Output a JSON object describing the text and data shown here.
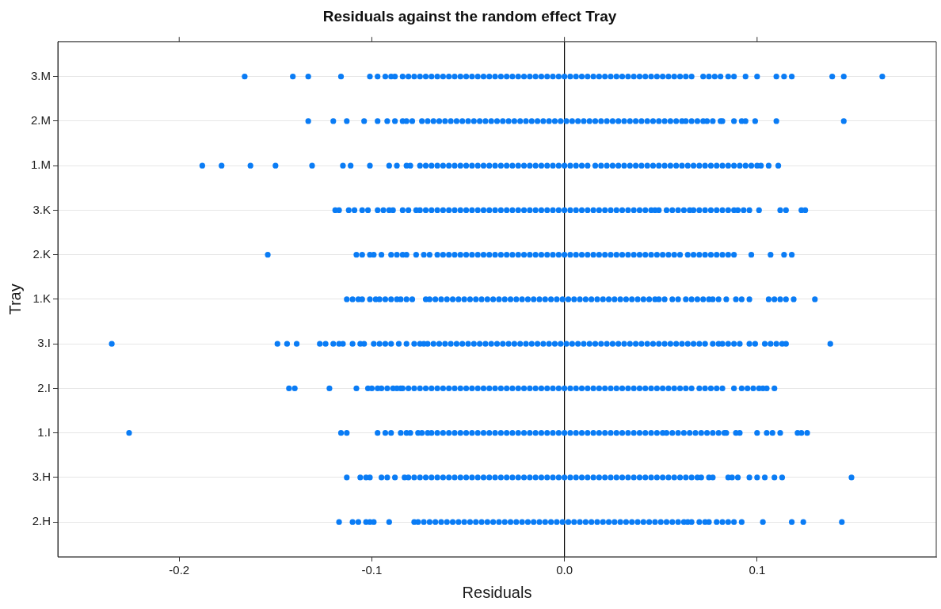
{
  "chart_data": {
    "type": "scatter",
    "orientation": "horizontal",
    "title": "Residuals against the random effect Tray",
    "xlabel": "Residuals",
    "ylabel": "Tray",
    "categories": [
      "3.M",
      "2.M",
      "1.M",
      "3.K",
      "2.K",
      "1.K",
      "3.I",
      "2.I",
      "1.I",
      "3.H",
      "2.H"
    ],
    "xlim": [
      -0.263,
      0.193
    ],
    "xticks": [
      -0.2,
      -0.1,
      {
        "value": 0,
        "label": "0.0"
      },
      0.1
    ],
    "grid": "y",
    "marker": "circle",
    "legend": false,
    "ref_lines": [
      {
        "axis": "x",
        "value": 0,
        "color": "#000000"
      }
    ],
    "series": [
      {
        "color": "#0a7cf5",
        "x": [
          "3.M",
          "3.M",
          "3.M",
          "3.M",
          "3.M",
          "3.M",
          "3.M",
          "3.M",
          "3.M",
          "3.M",
          "3.M",
          "3.M",
          "3.M",
          "3.M",
          "3.M",
          "3.M",
          "3.M",
          "3.M",
          "3.M",
          "3.M",
          "3.M",
          "3.M",
          "3.M",
          "3.M",
          "3.M",
          "3.M",
          "3.M",
          "3.M",
          "3.M",
          "3.M",
          "3.M",
          "3.M",
          "3.M",
          "3.M",
          "3.M",
          "3.M",
          "3.M",
          "3.M",
          "3.M",
          "3.M",
          "3.M",
          "3.M",
          "3.M",
          "3.M",
          "3.M",
          "3.M",
          "3.M",
          "3.M",
          "3.M",
          "3.M",
          "3.M",
          "3.M",
          "3.M",
          "3.M",
          "3.M",
          "3.M",
          "3.M",
          "3.M",
          "3.M",
          "3.M",
          "3.M",
          "3.M",
          "3.M",
          "3.M",
          "3.M",
          "3.M",
          "3.M",
          "3.M",
          "3.M",
          "3.M",
          "3.M",
          "3.M",
          "3.M",
          "3.M"
        ],
        "values": [
          -0.166,
          -0.141,
          -0.133,
          -0.116,
          -0.101,
          -0.097,
          -0.093,
          -0.09,
          -0.088,
          -0.084,
          -0.081,
          -0.078,
          -0.075,
          -0.072,
          -0.069,
          -0.066,
          -0.063,
          -0.06,
          -0.057,
          -0.054,
          -0.051,
          -0.048,
          -0.045,
          -0.042,
          -0.039,
          -0.036,
          -0.033,
          -0.03,
          -0.027,
          -0.024,
          -0.021,
          -0.018,
          -0.015,
          -0.012,
          -0.009,
          -0.006,
          -0.003,
          0,
          0.003,
          0.006,
          0.009,
          0.012,
          0.015,
          0.018,
          0.021,
          0.024,
          0.027,
          0.03,
          0.033,
          0.036,
          0.039,
          0.042,
          0.045,
          0.048,
          0.051,
          0.054,
          0.057,
          0.06,
          0.063,
          0.066,
          0.072,
          0.075,
          0.078,
          0.081,
          0.085,
          0.088,
          0.094,
          0.1,
          0.11,
          0.114,
          0.118,
          0.139,
          0.145,
          0.165
        ]
      },
      {
        "color": "#0a7cf5",
        "x": [
          "2.M",
          "2.M",
          "2.M",
          "2.M",
          "2.M",
          "2.M",
          "2.M",
          "2.M",
          "2.M",
          "2.M",
          "2.M",
          "2.M",
          "2.M",
          "2.M",
          "2.M",
          "2.M",
          "2.M",
          "2.M",
          "2.M",
          "2.M",
          "2.M",
          "2.M",
          "2.M",
          "2.M",
          "2.M",
          "2.M",
          "2.M",
          "2.M",
          "2.M",
          "2.M",
          "2.M",
          "2.M",
          "2.M",
          "2.M",
          "2.M",
          "2.M",
          "2.M",
          "2.M",
          "2.M",
          "2.M",
          "2.M",
          "2.M",
          "2.M",
          "2.M",
          "2.M",
          "2.M",
          "2.M",
          "2.M",
          "2.M",
          "2.M",
          "2.M",
          "2.M",
          "2.M",
          "2.M",
          "2.M",
          "2.M",
          "2.M",
          "2.M",
          "2.M",
          "2.M",
          "2.M",
          "2.M",
          "2.M",
          "2.M",
          "2.M",
          "2.M",
          "2.M",
          "2.M",
          "2.M",
          "2.M"
        ],
        "values": [
          -0.133,
          -0.12,
          -0.113,
          -0.104,
          -0.097,
          -0.092,
          -0.088,
          -0.084,
          -0.082,
          -0.079,
          -0.074,
          -0.071,
          -0.068,
          -0.065,
          -0.062,
          -0.059,
          -0.056,
          -0.053,
          -0.05,
          -0.047,
          -0.044,
          -0.041,
          -0.038,
          -0.035,
          -0.032,
          -0.029,
          -0.026,
          -0.023,
          -0.02,
          -0.017,
          -0.014,
          -0.011,
          -0.008,
          -0.005,
          -0.002,
          0.001,
          0.004,
          0.007,
          0.01,
          0.013,
          0.016,
          0.019,
          0.022,
          0.025,
          0.028,
          0.031,
          0.034,
          0.037,
          0.04,
          0.043,
          0.046,
          0.049,
          0.052,
          0.055,
          0.058,
          0.061,
          0.063,
          0.066,
          0.069,
          0.072,
          0.074,
          0.077,
          0.081,
          0.082,
          0.088,
          0.092,
          0.094,
          0.099,
          0.11,
          0.145
        ]
      },
      {
        "color": "#0a7cf5",
        "x": [
          "1.M",
          "1.M",
          "1.M",
          "1.M",
          "1.M",
          "1.M",
          "1.M",
          "1.M",
          "1.M",
          "1.M",
          "1.M",
          "1.M",
          "1.M",
          "1.M",
          "1.M",
          "1.M",
          "1.M",
          "1.M",
          "1.M",
          "1.M",
          "1.M",
          "1.M",
          "1.M",
          "1.M",
          "1.M",
          "1.M",
          "1.M",
          "1.M",
          "1.M",
          "1.M",
          "1.M",
          "1.M",
          "1.M",
          "1.M",
          "1.M",
          "1.M",
          "1.M",
          "1.M",
          "1.M",
          "1.M",
          "1.M",
          "1.M",
          "1.M",
          "1.M",
          "1.M",
          "1.M",
          "1.M",
          "1.M",
          "1.M",
          "1.M",
          "1.M",
          "1.M",
          "1.M",
          "1.M",
          "1.M",
          "1.M",
          "1.M",
          "1.M",
          "1.M",
          "1.M",
          "1.M",
          "1.M",
          "1.M",
          "1.M",
          "1.M",
          "1.M",
          "1.M",
          "1.M",
          "1.M",
          "1.M",
          "1.M",
          "1.M",
          "1.M",
          "1.M"
        ],
        "values": [
          -0.188,
          -0.178,
          -0.163,
          -0.15,
          -0.131,
          -0.115,
          -0.111,
          -0.101,
          -0.091,
          -0.087,
          -0.082,
          -0.08,
          -0.075,
          -0.072,
          -0.069,
          -0.066,
          -0.063,
          -0.06,
          -0.057,
          -0.054,
          -0.051,
          -0.048,
          -0.045,
          -0.042,
          -0.039,
          -0.036,
          -0.033,
          -0.03,
          -0.027,
          -0.024,
          -0.021,
          -0.018,
          -0.015,
          -0.012,
          -0.009,
          -0.006,
          -0.003,
          0,
          0.003,
          0.006,
          0.009,
          0.012,
          0.016,
          0.019,
          0.022,
          0.025,
          0.028,
          0.031,
          0.034,
          0.037,
          0.04,
          0.043,
          0.046,
          0.049,
          0.052,
          0.055,
          0.058,
          0.061,
          0.064,
          0.067,
          0.07,
          0.073,
          0.076,
          0.079,
          0.082,
          0.085,
          0.088,
          0.091,
          0.094,
          0.097,
          0.1,
          0.102,
          0.106,
          0.111
        ]
      },
      {
        "color": "#0a7cf5",
        "x": [
          "3.K",
          "3.K",
          "3.K",
          "3.K",
          "3.K",
          "3.K",
          "3.K",
          "3.K",
          "3.K",
          "3.K",
          "3.K",
          "3.K",
          "3.K",
          "3.K",
          "3.K",
          "3.K",
          "3.K",
          "3.K",
          "3.K",
          "3.K",
          "3.K",
          "3.K",
          "3.K",
          "3.K",
          "3.K",
          "3.K",
          "3.K",
          "3.K",
          "3.K",
          "3.K",
          "3.K",
          "3.K",
          "3.K",
          "3.K",
          "3.K",
          "3.K",
          "3.K",
          "3.K",
          "3.K",
          "3.K",
          "3.K",
          "3.K",
          "3.K",
          "3.K",
          "3.K",
          "3.K",
          "3.K",
          "3.K",
          "3.K",
          "3.K",
          "3.K",
          "3.K",
          "3.K",
          "3.K",
          "3.K",
          "3.K",
          "3.K",
          "3.K",
          "3.K",
          "3.K",
          "3.K",
          "3.K",
          "3.K",
          "3.K",
          "3.K",
          "3.K",
          "3.K",
          "3.K",
          "3.K",
          "3.K",
          "3.K",
          "3.K",
          "3.K",
          "3.K",
          "3.K",
          "3.K",
          "3.K"
        ],
        "values": [
          -0.119,
          -0.117,
          -0.112,
          -0.109,
          -0.105,
          -0.102,
          -0.097,
          -0.094,
          -0.091,
          -0.089,
          -0.084,
          -0.081,
          -0.077,
          -0.075,
          -0.072,
          -0.069,
          -0.066,
          -0.063,
          -0.06,
          -0.057,
          -0.054,
          -0.051,
          -0.048,
          -0.045,
          -0.042,
          -0.039,
          -0.036,
          -0.033,
          -0.03,
          -0.027,
          -0.024,
          -0.021,
          -0.018,
          -0.015,
          -0.012,
          -0.009,
          -0.006,
          -0.003,
          0,
          0.003,
          0.006,
          0.009,
          0.012,
          0.015,
          0.018,
          0.021,
          0.024,
          0.027,
          0.03,
          0.033,
          0.036,
          0.039,
          0.042,
          0.045,
          0.047,
          0.049,
          0.053,
          0.056,
          0.059,
          0.062,
          0.065,
          0.067,
          0.07,
          0.073,
          0.076,
          0.079,
          0.082,
          0.085,
          0.088,
          0.09,
          0.093,
          0.096,
          0.101,
          0.112,
          0.115,
          0.123,
          0.125
        ]
      },
      {
        "color": "#0a7cf5",
        "x": [
          "2.K",
          "2.K",
          "2.K",
          "2.K",
          "2.K",
          "2.K",
          "2.K",
          "2.K",
          "2.K",
          "2.K",
          "2.K",
          "2.K",
          "2.K",
          "2.K",
          "2.K",
          "2.K",
          "2.K",
          "2.K",
          "2.K",
          "2.K",
          "2.K",
          "2.K",
          "2.K",
          "2.K",
          "2.K",
          "2.K",
          "2.K",
          "2.K",
          "2.K",
          "2.K",
          "2.K",
          "2.K",
          "2.K",
          "2.K",
          "2.K",
          "2.K",
          "2.K",
          "2.K",
          "2.K",
          "2.K",
          "2.K",
          "2.K",
          "2.K",
          "2.K",
          "2.K",
          "2.K",
          "2.K",
          "2.K",
          "2.K",
          "2.K",
          "2.K",
          "2.K",
          "2.K",
          "2.K",
          "2.K",
          "2.K",
          "2.K",
          "2.K",
          "2.K",
          "2.K",
          "2.K",
          "2.K",
          "2.K",
          "2.K",
          "2.K",
          "2.K",
          "2.K",
          "2.K",
          "2.K"
        ],
        "values": [
          -0.154,
          -0.108,
          -0.105,
          -0.101,
          -0.099,
          -0.095,
          -0.09,
          -0.087,
          -0.084,
          -0.082,
          -0.077,
          -0.073,
          -0.07,
          -0.066,
          -0.063,
          -0.06,
          -0.057,
          -0.054,
          -0.051,
          -0.048,
          -0.045,
          -0.042,
          -0.039,
          -0.036,
          -0.033,
          -0.03,
          -0.027,
          -0.024,
          -0.021,
          -0.018,
          -0.015,
          -0.012,
          -0.009,
          -0.006,
          -0.003,
          0,
          0.003,
          0.006,
          0.009,
          0.012,
          0.015,
          0.018,
          0.021,
          0.024,
          0.027,
          0.03,
          0.033,
          0.036,
          0.039,
          0.042,
          0.045,
          0.048,
          0.051,
          0.054,
          0.057,
          0.06,
          0.064,
          0.067,
          0.07,
          0.073,
          0.076,
          0.079,
          0.082,
          0.085,
          0.088,
          0.097,
          0.107,
          0.114,
          0.118
        ]
      },
      {
        "color": "#0a7cf5",
        "x": [
          "1.K",
          "1.K",
          "1.K",
          "1.K",
          "1.K",
          "1.K",
          "1.K",
          "1.K",
          "1.K",
          "1.K",
          "1.K",
          "1.K",
          "1.K",
          "1.K",
          "1.K",
          "1.K",
          "1.K",
          "1.K",
          "1.K",
          "1.K",
          "1.K",
          "1.K",
          "1.K",
          "1.K",
          "1.K",
          "1.K",
          "1.K",
          "1.K",
          "1.K",
          "1.K",
          "1.K",
          "1.K",
          "1.K",
          "1.K",
          "1.K",
          "1.K",
          "1.K",
          "1.K",
          "1.K",
          "1.K",
          "1.K",
          "1.K",
          "1.K",
          "1.K",
          "1.K",
          "1.K",
          "1.K",
          "1.K",
          "1.K",
          "1.K",
          "1.K",
          "1.K",
          "1.K",
          "1.K",
          "1.K",
          "1.K",
          "1.K",
          "1.K",
          "1.K",
          "1.K",
          "1.K",
          "1.K",
          "1.K",
          "1.K",
          "1.K",
          "1.K",
          "1.K",
          "1.K",
          "1.K",
          "1.K",
          "1.K",
          "1.K",
          "1.K",
          "1.K",
          "1.K"
        ],
        "values": [
          -0.113,
          -0.11,
          -0.107,
          -0.105,
          -0.101,
          -0.098,
          -0.096,
          -0.093,
          -0.09,
          -0.087,
          -0.085,
          -0.082,
          -0.079,
          -0.072,
          -0.07,
          -0.067,
          -0.064,
          -0.061,
          -0.058,
          -0.055,
          -0.052,
          -0.049,
          -0.046,
          -0.043,
          -0.04,
          -0.037,
          -0.034,
          -0.031,
          -0.028,
          -0.025,
          -0.022,
          -0.019,
          -0.016,
          -0.013,
          -0.01,
          -0.007,
          -0.004,
          -0.001,
          0.002,
          0.005,
          0.008,
          0.011,
          0.014,
          0.017,
          0.02,
          0.023,
          0.026,
          0.029,
          0.032,
          0.035,
          0.038,
          0.041,
          0.044,
          0.047,
          0.049,
          0.052,
          0.056,
          0.059,
          0.063,
          0.066,
          0.069,
          0.072,
          0.075,
          0.077,
          0.08,
          0.084,
          0.089,
          0.092,
          0.096,
          0.106,
          0.109,
          0.112,
          0.115,
          0.119,
          0.13
        ]
      },
      {
        "color": "#0a7cf5",
        "x": [
          "3.I",
          "3.I",
          "3.I",
          "3.I",
          "3.I",
          "3.I",
          "3.I",
          "3.I",
          "3.I",
          "3.I",
          "3.I",
          "3.I",
          "3.I",
          "3.I",
          "3.I",
          "3.I",
          "3.I",
          "3.I",
          "3.I",
          "3.I",
          "3.I",
          "3.I",
          "3.I",
          "3.I",
          "3.I",
          "3.I",
          "3.I",
          "3.I",
          "3.I",
          "3.I",
          "3.I",
          "3.I",
          "3.I",
          "3.I",
          "3.I",
          "3.I",
          "3.I",
          "3.I",
          "3.I",
          "3.I",
          "3.I",
          "3.I",
          "3.I",
          "3.I",
          "3.I",
          "3.I",
          "3.I",
          "3.I",
          "3.I",
          "3.I",
          "3.I",
          "3.I",
          "3.I",
          "3.I",
          "3.I",
          "3.I",
          "3.I",
          "3.I",
          "3.I",
          "3.I",
          "3.I",
          "3.I",
          "3.I",
          "3.I",
          "3.I",
          "3.I",
          "3.I",
          "3.I",
          "3.I",
          "3.I",
          "3.I",
          "3.I",
          "3.I",
          "3.I",
          "3.I",
          "3.I",
          "3.I",
          "3.I",
          "3.I",
          "3.I",
          "3.I",
          "3.I",
          "3.I",
          "3.I"
        ],
        "values": [
          -0.235,
          -0.149,
          -0.144,
          -0.139,
          -0.127,
          -0.124,
          -0.12,
          -0.117,
          -0.115,
          -0.11,
          -0.106,
          -0.104,
          -0.099,
          -0.096,
          -0.093,
          -0.09,
          -0.086,
          -0.082,
          -0.078,
          -0.075,
          -0.073,
          -0.071,
          -0.068,
          -0.065,
          -0.062,
          -0.059,
          -0.056,
          -0.053,
          -0.05,
          -0.047,
          -0.044,
          -0.041,
          -0.038,
          -0.035,
          -0.032,
          -0.029,
          -0.026,
          -0.023,
          -0.02,
          -0.017,
          -0.014,
          -0.011,
          -0.008,
          -0.005,
          -0.002,
          0.001,
          0.004,
          0.007,
          0.01,
          0.013,
          0.016,
          0.019,
          0.022,
          0.025,
          0.028,
          0.031,
          0.034,
          0.037,
          0.04,
          0.043,
          0.046,
          0.049,
          0.052,
          0.055,
          0.058,
          0.061,
          0.064,
          0.067,
          0.07,
          0.073,
          0.077,
          0.08,
          0.082,
          0.085,
          0.088,
          0.091,
          0.096,
          0.099,
          0.104,
          0.107,
          0.11,
          0.113,
          0.115,
          0.138
        ]
      },
      {
        "color": "#0a7cf5",
        "x": [
          "2.I",
          "2.I",
          "2.I",
          "2.I",
          "2.I",
          "2.I",
          "2.I",
          "2.I",
          "2.I",
          "2.I",
          "2.I",
          "2.I",
          "2.I",
          "2.I",
          "2.I",
          "2.I",
          "2.I",
          "2.I",
          "2.I",
          "2.I",
          "2.I",
          "2.I",
          "2.I",
          "2.I",
          "2.I",
          "2.I",
          "2.I",
          "2.I",
          "2.I",
          "2.I",
          "2.I",
          "2.I",
          "2.I",
          "2.I",
          "2.I",
          "2.I",
          "2.I",
          "2.I",
          "2.I",
          "2.I",
          "2.I",
          "2.I",
          "2.I",
          "2.I",
          "2.I",
          "2.I",
          "2.I",
          "2.I",
          "2.I",
          "2.I",
          "2.I",
          "2.I",
          "2.I",
          "2.I",
          "2.I",
          "2.I",
          "2.I",
          "2.I",
          "2.I",
          "2.I",
          "2.I",
          "2.I",
          "2.I",
          "2.I",
          "2.I",
          "2.I",
          "2.I",
          "2.I",
          "2.I",
          "2.I",
          "2.I",
          "2.I",
          "2.I",
          "2.I",
          "2.I",
          "2.I"
        ],
        "values": [
          -0.143,
          -0.14,
          -0.122,
          -0.108,
          -0.102,
          -0.1,
          -0.097,
          -0.095,
          -0.092,
          -0.089,
          -0.087,
          -0.085,
          -0.084,
          -0.081,
          -0.078,
          -0.075,
          -0.072,
          -0.069,
          -0.066,
          -0.063,
          -0.06,
          -0.057,
          -0.054,
          -0.051,
          -0.048,
          -0.045,
          -0.042,
          -0.039,
          -0.036,
          -0.033,
          -0.03,
          -0.027,
          -0.024,
          -0.021,
          -0.018,
          -0.015,
          -0.012,
          -0.009,
          -0.006,
          -0.003,
          0,
          0.003,
          0.006,
          0.009,
          0.012,
          0.015,
          0.018,
          0.021,
          0.024,
          0.027,
          0.03,
          0.033,
          0.036,
          0.039,
          0.042,
          0.045,
          0.048,
          0.051,
          0.054,
          0.057,
          0.06,
          0.063,
          0.066,
          0.07,
          0.073,
          0.076,
          0.079,
          0.082,
          0.088,
          0.092,
          0.095,
          0.098,
          0.101,
          0.103,
          0.105,
          0.109
        ]
      },
      {
        "color": "#0a7cf5",
        "x": [
          "1.I",
          "1.I",
          "1.I",
          "1.I",
          "1.I",
          "1.I",
          "1.I",
          "1.I",
          "1.I",
          "1.I",
          "1.I",
          "1.I",
          "1.I",
          "1.I",
          "1.I",
          "1.I",
          "1.I",
          "1.I",
          "1.I",
          "1.I",
          "1.I",
          "1.I",
          "1.I",
          "1.I",
          "1.I",
          "1.I",
          "1.I",
          "1.I",
          "1.I",
          "1.I",
          "1.I",
          "1.I",
          "1.I",
          "1.I",
          "1.I",
          "1.I",
          "1.I",
          "1.I",
          "1.I",
          "1.I",
          "1.I",
          "1.I",
          "1.I",
          "1.I",
          "1.I",
          "1.I",
          "1.I",
          "1.I",
          "1.I",
          "1.I",
          "1.I",
          "1.I",
          "1.I",
          "1.I",
          "1.I",
          "1.I",
          "1.I",
          "1.I",
          "1.I",
          "1.I",
          "1.I",
          "1.I",
          "1.I",
          "1.I",
          "1.I",
          "1.I",
          "1.I",
          "1.I",
          "1.I",
          "1.I",
          "1.I",
          "1.I",
          "1.I",
          "1.I"
        ],
        "values": [
          -0.226,
          -0.116,
          -0.113,
          -0.097,
          -0.093,
          -0.09,
          -0.085,
          -0.082,
          -0.08,
          -0.076,
          -0.074,
          -0.071,
          -0.069,
          -0.066,
          -0.063,
          -0.06,
          -0.057,
          -0.054,
          -0.051,
          -0.048,
          -0.045,
          -0.042,
          -0.039,
          -0.036,
          -0.033,
          -0.03,
          -0.027,
          -0.024,
          -0.021,
          -0.018,
          -0.015,
          -0.012,
          -0.009,
          -0.006,
          -0.003,
          0,
          0.003,
          0.006,
          0.009,
          0.012,
          0.015,
          0.018,
          0.021,
          0.024,
          0.027,
          0.03,
          0.033,
          0.036,
          0.039,
          0.042,
          0.045,
          0.048,
          0.051,
          0.053,
          0.056,
          0.059,
          0.062,
          0.065,
          0.068,
          0.071,
          0.074,
          0.077,
          0.08,
          0.083,
          0.084,
          0.089,
          0.091,
          0.1,
          0.105,
          0.108,
          0.112,
          0.121,
          0.123,
          0.126
        ]
      },
      {
        "color": "#0a7cf5",
        "x": [
          "3.H",
          "3.H",
          "3.H",
          "3.H",
          "3.H",
          "3.H",
          "3.H",
          "3.H",
          "3.H",
          "3.H",
          "3.H",
          "3.H",
          "3.H",
          "3.H",
          "3.H",
          "3.H",
          "3.H",
          "3.H",
          "3.H",
          "3.H",
          "3.H",
          "3.H",
          "3.H",
          "3.H",
          "3.H",
          "3.H",
          "3.H",
          "3.H",
          "3.H",
          "3.H",
          "3.H",
          "3.H",
          "3.H",
          "3.H",
          "3.H",
          "3.H",
          "3.H",
          "3.H",
          "3.H",
          "3.H",
          "3.H",
          "3.H",
          "3.H",
          "3.H",
          "3.H",
          "3.H",
          "3.H",
          "3.H",
          "3.H",
          "3.H",
          "3.H",
          "3.H",
          "3.H",
          "3.H",
          "3.H",
          "3.H",
          "3.H",
          "3.H",
          "3.H",
          "3.H",
          "3.H",
          "3.H",
          "3.H",
          "3.H",
          "3.H",
          "3.H",
          "3.H",
          "3.H",
          "3.H",
          "3.H",
          "3.H"
        ],
        "values": [
          -0.113,
          -0.106,
          -0.103,
          -0.101,
          -0.095,
          -0.092,
          -0.088,
          -0.083,
          -0.081,
          -0.078,
          -0.075,
          -0.072,
          -0.069,
          -0.066,
          -0.063,
          -0.06,
          -0.057,
          -0.054,
          -0.051,
          -0.048,
          -0.045,
          -0.042,
          -0.039,
          -0.036,
          -0.033,
          -0.03,
          -0.027,
          -0.024,
          -0.021,
          -0.018,
          -0.015,
          -0.012,
          -0.009,
          -0.006,
          -0.003,
          0,
          0.003,
          0.006,
          0.009,
          0.012,
          0.015,
          0.018,
          0.021,
          0.024,
          0.027,
          0.03,
          0.033,
          0.036,
          0.039,
          0.042,
          0.045,
          0.048,
          0.051,
          0.054,
          0.057,
          0.06,
          0.063,
          0.066,
          0.069,
          0.071,
          0.075,
          0.077,
          0.085,
          0.087,
          0.09,
          0.096,
          0.1,
          0.104,
          0.109,
          0.113,
          0.149
        ]
      },
      {
        "color": "#0a7cf5",
        "x": [
          "2.H",
          "2.H",
          "2.H",
          "2.H",
          "2.H",
          "2.H",
          "2.H",
          "2.H",
          "2.H",
          "2.H",
          "2.H",
          "2.H",
          "2.H",
          "2.H",
          "2.H",
          "2.H",
          "2.H",
          "2.H",
          "2.H",
          "2.H",
          "2.H",
          "2.H",
          "2.H",
          "2.H",
          "2.H",
          "2.H",
          "2.H",
          "2.H",
          "2.H",
          "2.H",
          "2.H",
          "2.H",
          "2.H",
          "2.H",
          "2.H",
          "2.H",
          "2.H",
          "2.H",
          "2.H",
          "2.H",
          "2.H",
          "2.H",
          "2.H",
          "2.H",
          "2.H",
          "2.H",
          "2.H",
          "2.H",
          "2.H",
          "2.H",
          "2.H",
          "2.H",
          "2.H",
          "2.H",
          "2.H",
          "2.H",
          "2.H",
          "2.H",
          "2.H",
          "2.H",
          "2.H",
          "2.H",
          "2.H",
          "2.H",
          "2.H",
          "2.H",
          "2.H",
          "2.H",
          "2.H"
        ],
        "values": [
          -0.117,
          -0.11,
          -0.107,
          -0.103,
          -0.101,
          -0.099,
          -0.091,
          -0.078,
          -0.076,
          -0.073,
          -0.07,
          -0.067,
          -0.064,
          -0.061,
          -0.058,
          -0.055,
          -0.052,
          -0.049,
          -0.046,
          -0.043,
          -0.04,
          -0.037,
          -0.034,
          -0.031,
          -0.028,
          -0.025,
          -0.022,
          -0.019,
          -0.016,
          -0.013,
          -0.01,
          -0.007,
          -0.004,
          -0.001,
          0.002,
          0.005,
          0.008,
          0.011,
          0.014,
          0.017,
          0.02,
          0.023,
          0.026,
          0.029,
          0.032,
          0.035,
          0.038,
          0.041,
          0.044,
          0.047,
          0.05,
          0.053,
          0.056,
          0.059,
          0.062,
          0.064,
          0.066,
          0.07,
          0.073,
          0.075,
          0.079,
          0.082,
          0.085,
          0.088,
          0.092,
          0.103,
          0.118,
          0.124,
          0.144
        ]
      }
    ]
  }
}
